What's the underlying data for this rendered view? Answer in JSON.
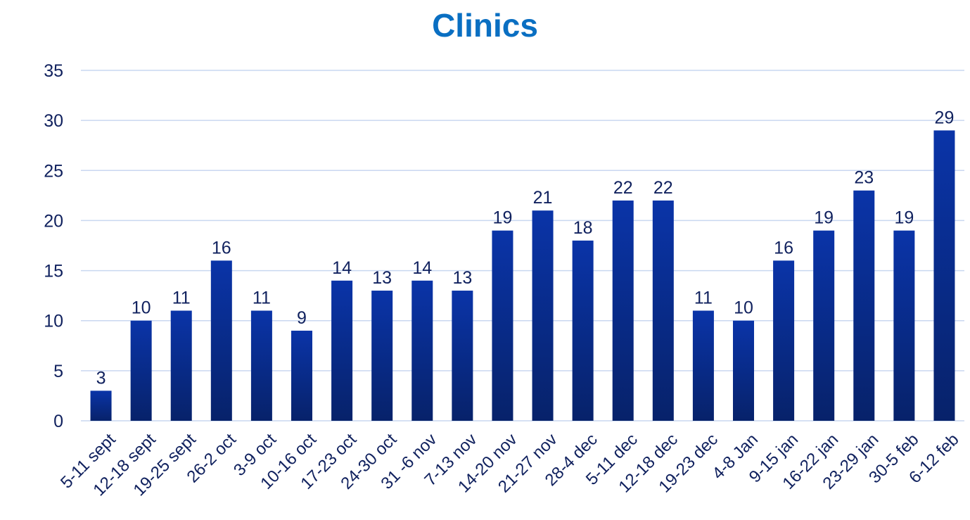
{
  "colors": {
    "title": "#0a6fc2",
    "bar_top": "#0a34a8",
    "bar_bottom": "#07226a",
    "grid": "#c9d7f0",
    "text": "#10215e"
  },
  "chart_data": {
    "type": "bar",
    "title": "Clinics",
    "xlabel": "",
    "ylabel": "",
    "ylim": [
      0,
      35
    ],
    "yticks": [
      0,
      5,
      10,
      15,
      20,
      25,
      30,
      35
    ],
    "grid": true,
    "legend": "none",
    "categories": [
      "5-11 sept",
      "12-18 sept",
      "19-25 sept",
      "26-2 oct",
      "3-9 oct",
      "10-16 oct",
      "17-23 oct",
      "24-30 oct",
      "31 -6 nov",
      "7-13 nov",
      "14-20 nov",
      "21-27 nov",
      "28-4 dec",
      "5-11 dec",
      "12-18 dec",
      "19-23 dec",
      "4-8 Jan",
      "9-15 jan",
      "16-22 jan",
      "23-29 jan",
      "30-5 feb",
      "6-12 feb"
    ],
    "values": [
      3,
      10,
      11,
      16,
      11,
      9,
      14,
      13,
      14,
      13,
      19,
      21,
      18,
      22,
      22,
      11,
      10,
      16,
      19,
      23,
      19,
      29
    ]
  }
}
